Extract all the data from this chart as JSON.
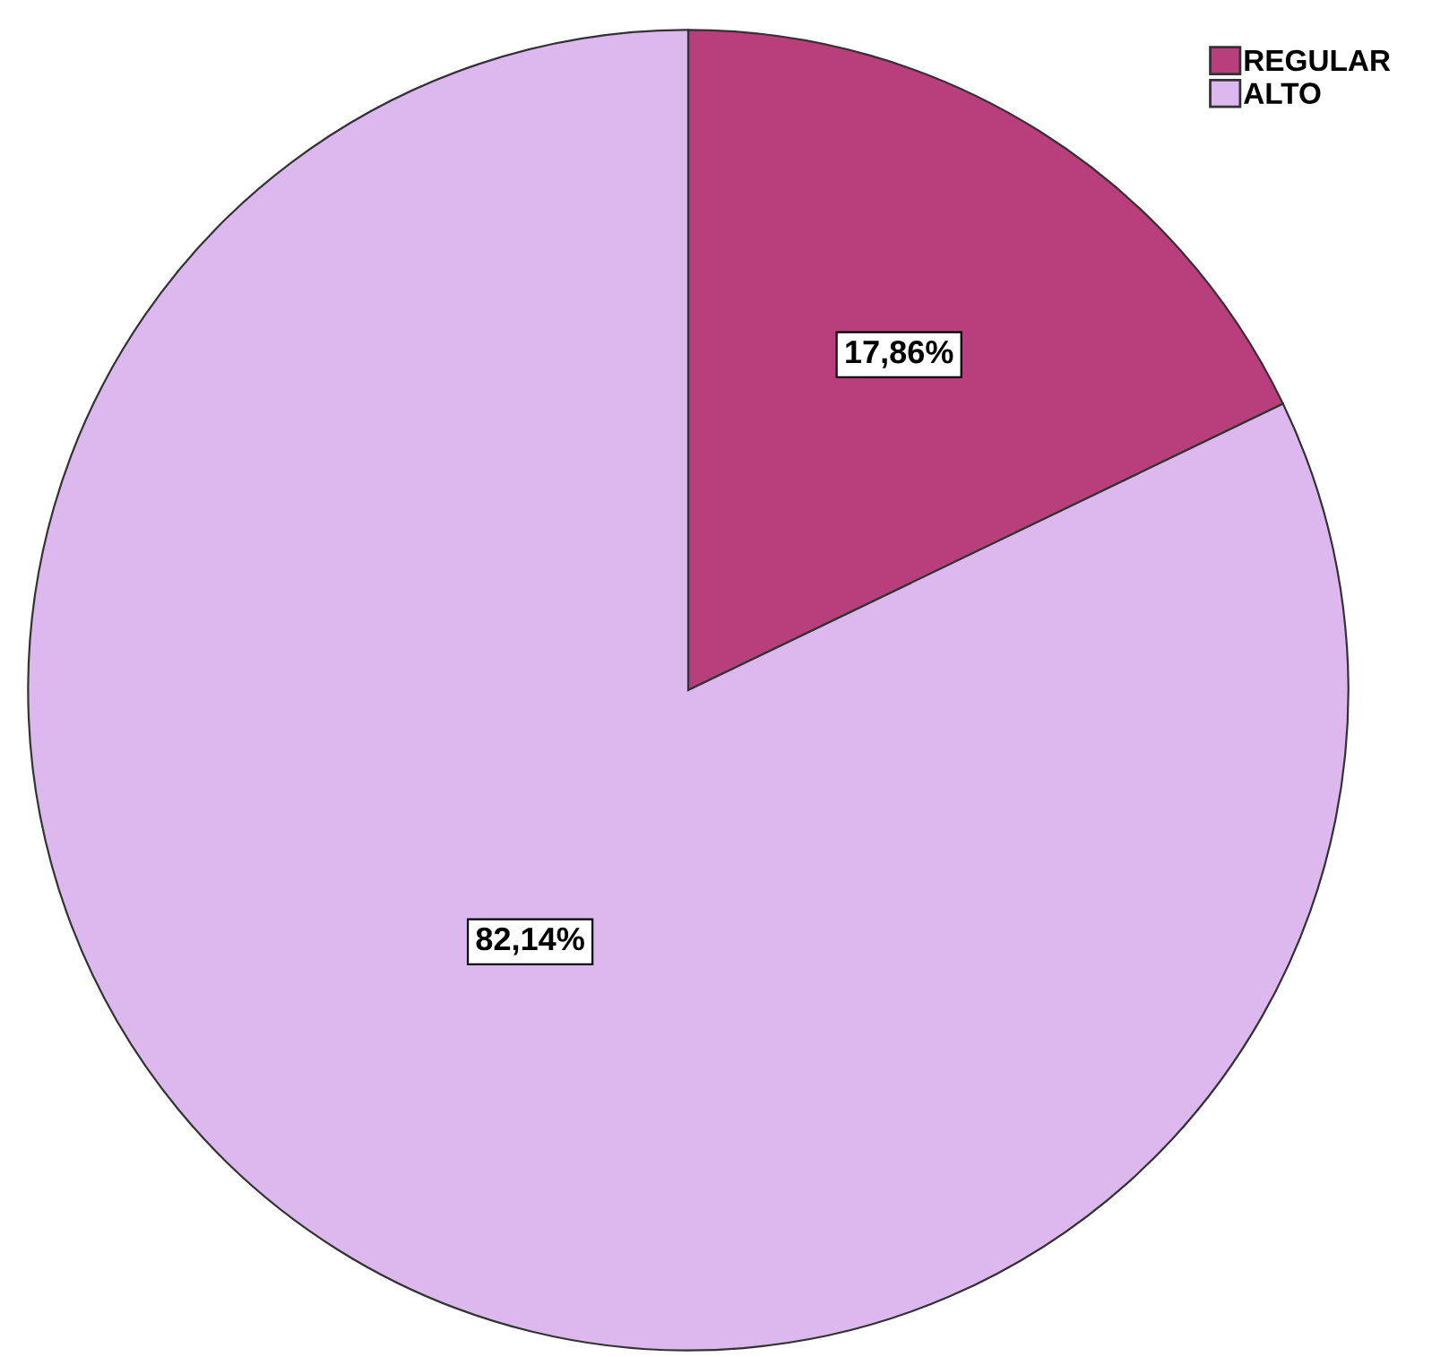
{
  "chart_data": {
    "type": "pie",
    "categories": [
      "REGULAR",
      "ALTO"
    ],
    "values": [
      17.86,
      82.14
    ],
    "colors": [
      "#b83f7c",
      "#dcb8ef"
    ],
    "value_labels": [
      "17,86%",
      "82,14%"
    ],
    "legend": "top right"
  }
}
